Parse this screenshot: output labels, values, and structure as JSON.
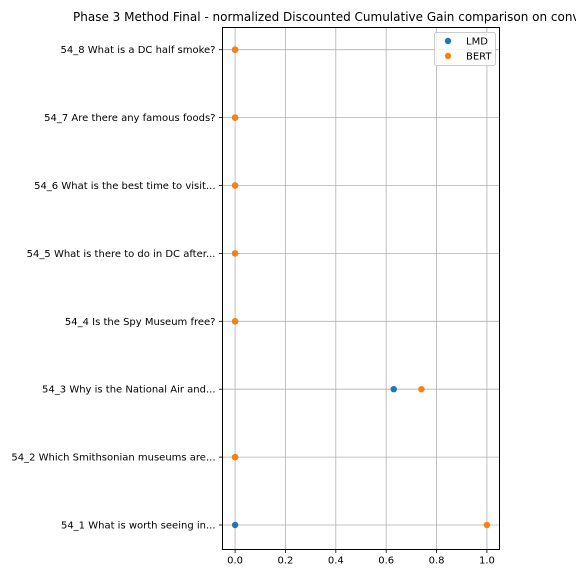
{
  "chart_data": {
    "type": "scatter",
    "title": "Phase 3 Method Final - normalized Discounted Cumulative Gain comparison on conv",
    "xlabel": "",
    "ylabel": "",
    "xlim": [
      -0.05,
      1.05
    ],
    "xticks": [
      "0.0",
      "0.2",
      "0.4",
      "0.6",
      "0.8",
      "1.0"
    ],
    "categories": [
      "54_1 What is worth seeing in...",
      "54_2 Which Smithsonian museums are...",
      "54_3 Why is the National Air and...",
      "54_4 Is the Spy Museum free?",
      "54_5 What is there to do in DC after...",
      "54_6 What is the best time to visit...",
      "54_7 Are there any famous foods?",
      "54_8 What is a DC half smoke?"
    ],
    "series": [
      {
        "name": "LMD",
        "color": "#1f77b4",
        "values": [
          0.0,
          0.0,
          0.63,
          0.0,
          0.0,
          0.0,
          0.0,
          0.0
        ]
      },
      {
        "name": "BERT",
        "color": "#ff7f0e",
        "values": [
          1.0,
          0.0,
          0.74,
          0.0,
          0.0,
          0.0,
          0.0,
          0.0
        ]
      }
    ],
    "grid": true,
    "legend_position": "top-right"
  }
}
